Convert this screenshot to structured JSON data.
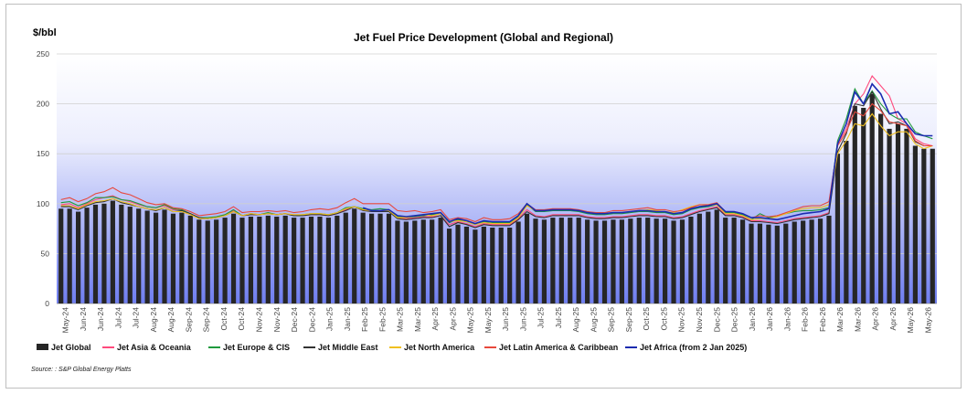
{
  "chart_data": {
    "type": "bar",
    "title": "Jet Fuel Price Development (Global and Regional)",
    "ylabel": "$/bbl",
    "ylim": [
      0,
      250
    ],
    "yticks": [
      0,
      50,
      100,
      150,
      200,
      250
    ],
    "grid": true,
    "legend_position": "bottom",
    "source": "Source: : S&P Global Energy Platts",
    "x_tick_labels": [
      "May-24",
      "Jun-24",
      "Jun-24",
      "Jul-24",
      "Jul-24",
      "Aug-24",
      "Aug-24",
      "Sep-24",
      "Sep-24",
      "Oct-24",
      "Oct-24",
      "Nov-24",
      "Nov-24",
      "Dec-24",
      "Dec-24",
      "Jan-25",
      "Jan-25",
      "Feb-25",
      "Feb-25",
      "Mar-25",
      "Mar-25",
      "Apr-25",
      "Apr-25",
      "May-25",
      "May-25",
      "Jun-25",
      "Jun-25",
      "Jul-25",
      "Jul-25",
      "Aug-25",
      "Aug-25",
      "Sep-25",
      "Sep-25",
      "Oct-25",
      "Oct-25",
      "Nov-25",
      "Nov-25",
      "Dec-25",
      "Dec-25",
      "Jan-26",
      "Jan-26",
      "Jan-26",
      "Feb-26",
      "Feb-26",
      "Mar-26",
      "Mar-26",
      "Apr-26",
      "Apr-26",
      "May-26",
      "May-26"
    ],
    "series": [
      {
        "name": "Jet Global",
        "kind": "bar",
        "color": "#262626",
        "values": [
          95,
          95,
          92,
          96,
          99,
          100,
          103,
          99,
          97,
          95,
          93,
          91,
          94,
          90,
          91,
          88,
          84,
          83,
          84,
          86,
          90,
          86,
          87,
          87,
          88,
          87,
          88,
          86,
          86,
          87,
          87,
          86,
          88,
          91,
          95,
          91,
          90,
          90,
          90,
          83,
          82,
          83,
          84,
          84,
          86,
          75,
          79,
          77,
          74,
          77,
          76,
          76,
          76,
          82,
          90,
          85,
          84,
          86,
          86,
          86,
          86,
          84,
          83,
          83,
          84,
          84,
          85,
          86,
          86,
          85,
          85,
          83,
          84,
          87,
          90,
          92,
          94,
          86,
          86,
          84,
          80,
          80,
          79,
          78,
          80,
          82,
          83,
          84,
          85,
          88,
          150,
          163,
          198,
          196,
          210,
          190,
          175,
          180,
          175,
          158,
          155,
          155
        ]
      },
      {
        "name": "Jet Asia & Oceania",
        "kind": "line",
        "color": "#ff4a7d",
        "values": [
          99,
          100,
          96,
          100,
          104,
          106,
          108,
          104,
          102,
          99,
          97,
          96,
          98,
          94,
          94,
          90,
          86,
          85,
          86,
          88,
          93,
          88,
          89,
          89,
          90,
          89,
          90,
          88,
          88,
          89,
          89,
          88,
          90,
          94,
          97,
          94,
          93,
          93,
          93,
          86,
          85,
          86,
          87,
          87,
          88,
          79,
          82,
          80,
          77,
          80,
          79,
          79,
          79,
          85,
          94,
          88,
          87,
          89,
          89,
          89,
          89,
          87,
          86,
          86,
          87,
          87,
          88,
          89,
          89,
          88,
          88,
          86,
          87,
          90,
          93,
          95,
          97,
          89,
          89,
          87,
          83,
          83,
          82,
          81,
          83,
          85,
          86,
          87,
          88,
          91,
          160,
          175,
          200,
          210,
          228,
          218,
          208,
          185,
          180,
          165,
          160,
          158
        ]
      },
      {
        "name": "Jet Europe & CIS",
        "kind": "line",
        "color": "#1f9a3e",
        "values": [
          101,
          102,
          98,
          101,
          106,
          106,
          107,
          104,
          103,
          100,
          97,
          96,
          99,
          95,
          94,
          90,
          86,
          86,
          87,
          89,
          94,
          88,
          90,
          89,
          91,
          89,
          90,
          88,
          89,
          90,
          90,
          89,
          91,
          96,
          97,
          95,
          94,
          95,
          94,
          87,
          86,
          87,
          88,
          89,
          90,
          81,
          84,
          82,
          79,
          82,
          81,
          81,
          81,
          87,
          99,
          92,
          92,
          93,
          93,
          93,
          92,
          90,
          89,
          89,
          90,
          90,
          91,
          92,
          92,
          91,
          91,
          89,
          90,
          94,
          96,
          97,
          99,
          91,
          91,
          89,
          84,
          90,
          86,
          88,
          90,
          92,
          93,
          93,
          94,
          96,
          163,
          185,
          215,
          200,
          213,
          200,
          190,
          185,
          185,
          172,
          168,
          165
        ]
      },
      {
        "name": "Jet Middle East",
        "kind": "line",
        "color": "#333333",
        "values": [
          97,
          97,
          94,
          98,
          101,
          102,
          105,
          101,
          99,
          97,
          95,
          93,
          96,
          92,
          93,
          90,
          86,
          85,
          86,
          88,
          92,
          88,
          89,
          89,
          90,
          89,
          90,
          88,
          88,
          89,
          89,
          88,
          90,
          93,
          97,
          93,
          92,
          92,
          92,
          85,
          84,
          85,
          86,
          86,
          88,
          77,
          81,
          79,
          76,
          79,
          78,
          78,
          78,
          84,
          92,
          87,
          86,
          88,
          88,
          88,
          88,
          86,
          85,
          85,
          86,
          86,
          87,
          88,
          88,
          87,
          87,
          85,
          86,
          89,
          92,
          94,
          96,
          88,
          88,
          86,
          82,
          82,
          81,
          80,
          82,
          84,
          85,
          86,
          87,
          90,
          152,
          170,
          200,
          198,
          212,
          195,
          180,
          182,
          178,
          162,
          158,
          158
        ]
      },
      {
        "name": "Jet North America",
        "kind": "line",
        "color": "#f0c020",
        "values": [
          98,
          98,
          95,
          99,
          102,
          103,
          105,
          102,
          100,
          97,
          95,
          94,
          96,
          92,
          92,
          89,
          85,
          85,
          86,
          88,
          92,
          88,
          90,
          89,
          90,
          89,
          90,
          89,
          89,
          90,
          90,
          89,
          91,
          95,
          97,
          94,
          93,
          93,
          93,
          86,
          86,
          88,
          89,
          88,
          90,
          82,
          83,
          82,
          79,
          81,
          80,
          80,
          80,
          86,
          98,
          93,
          93,
          94,
          94,
          94,
          93,
          91,
          90,
          90,
          91,
          91,
          92,
          93,
          94,
          93,
          92,
          91,
          94,
          97,
          99,
          98,
          99,
          90,
          90,
          88,
          84,
          85,
          85,
          87,
          90,
          93,
          95,
          96,
          96,
          99,
          150,
          163,
          180,
          178,
          190,
          178,
          168,
          172,
          172,
          160,
          155,
          158
        ]
      },
      {
        "name": "Jet Latin America & Caribbean",
        "kind": "line",
        "color": "#e8483c",
        "values": [
          104,
          106,
          102,
          105,
          110,
          112,
          116,
          111,
          109,
          105,
          101,
          99,
          100,
          96,
          95,
          92,
          88,
          89,
          90,
          92,
          97,
          91,
          92,
          92,
          93,
          92,
          93,
          91,
          92,
          94,
          95,
          94,
          96,
          101,
          105,
          100,
          100,
          100,
          100,
          93,
          92,
          93,
          91,
          92,
          94,
          84,
          86,
          85,
          82,
          86,
          84,
          84,
          85,
          90,
          100,
          94,
          94,
          95,
          95,
          95,
          94,
          92,
          91,
          91,
          93,
          93,
          94,
          95,
          96,
          94,
          94,
          92,
          93,
          96,
          99,
          99,
          101,
          92,
          92,
          90,
          86,
          88,
          87,
          88,
          91,
          94,
          97,
          98,
          98,
          102,
          158,
          172,
          192,
          188,
          200,
          193,
          182,
          180,
          178,
          163,
          158,
          158
        ]
      },
      {
        "name": "Jet Africa (from 2 Jan 2025)",
        "kind": "line",
        "color": "#1b2bb0",
        "start_index": 35,
        "values": [
          null,
          null,
          null,
          null,
          null,
          null,
          null,
          null,
          null,
          null,
          null,
          null,
          null,
          null,
          null,
          null,
          null,
          null,
          null,
          null,
          null,
          null,
          null,
          null,
          null,
          null,
          null,
          null,
          null,
          null,
          null,
          null,
          null,
          null,
          null,
          96,
          93,
          93,
          94,
          88,
          87,
          88,
          89,
          90,
          91,
          82,
          85,
          83,
          80,
          83,
          82,
          82,
          82,
          88,
          100,
          93,
          93,
          94,
          94,
          94,
          93,
          91,
          90,
          90,
          91,
          91,
          92,
          93,
          93,
          92,
          92,
          90,
          91,
          95,
          97,
          98,
          100,
          92,
          92,
          90,
          86,
          86,
          85,
          84,
          86,
          88,
          90,
          91,
          92,
          95,
          160,
          180,
          212,
          200,
          220,
          210,
          190,
          192,
          180,
          170,
          168,
          168
        ]
      }
    ]
  }
}
